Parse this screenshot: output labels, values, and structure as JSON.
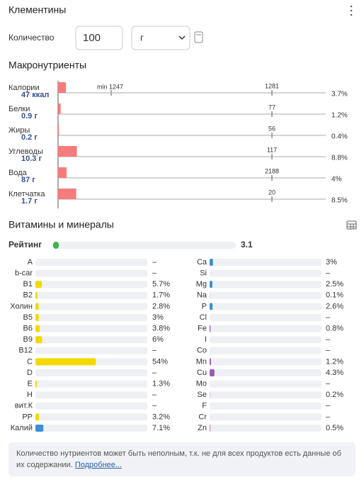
{
  "header": {
    "title": "Клементины"
  },
  "quantity": {
    "label": "Количество",
    "value": 100,
    "unit": "г"
  },
  "macros": {
    "title": "Макронутриенты",
    "min_label": "min 1247",
    "color": "#f47c7c",
    "rows": [
      {
        "name": "Калории",
        "amount": "47 ккал",
        "norm": 1281,
        "percent": 3.7,
        "percent_label": "3.7%"
      },
      {
        "name": "Белки",
        "amount": "0.9 г",
        "norm": 77,
        "percent": 1.2,
        "percent_label": "1.2%"
      },
      {
        "name": "Жиры",
        "amount": "0.2 г",
        "norm": 56,
        "percent": 0.4,
        "percent_label": "0.4%"
      },
      {
        "name": "Углеводы",
        "amount": "10.3 г",
        "norm": 117,
        "percent": 8.8,
        "percent_label": "8.8%"
      },
      {
        "name": "Вода",
        "amount": "87 г",
        "norm": 2188,
        "percent": 4,
        "percent_label": "4%"
      },
      {
        "name": "Клетчатка",
        "amount": "1.7 г",
        "norm": 20,
        "percent": 8.5,
        "percent_label": "8.5%"
      }
    ]
  },
  "vitamins": {
    "title": "Витамины и минералы",
    "rating": {
      "label": "Рейтинг",
      "value": 3.1,
      "color": "#3cb54a"
    },
    "columns": [
      [
        {
          "name": "A",
          "value": null,
          "value_label": "–"
        },
        {
          "name": "b-car",
          "value": null,
          "value_label": "–"
        },
        {
          "name": "B1",
          "value": 5.7,
          "value_label": "5.7%",
          "color": "#f2d900"
        },
        {
          "name": "B2",
          "value": 1.7,
          "value_label": "1.7%",
          "color": "#f2d900"
        },
        {
          "name": "Холин",
          "value": 2.8,
          "value_label": "2.8%",
          "color": "#f2d900"
        },
        {
          "name": "B5",
          "value": 3,
          "value_label": "3%",
          "color": "#f2d900"
        },
        {
          "name": "B6",
          "value": 3.8,
          "value_label": "3.8%",
          "color": "#f2d900"
        },
        {
          "name": "B9",
          "value": 6,
          "value_label": "6%",
          "color": "#f2d900"
        },
        {
          "name": "B12",
          "value": null,
          "value_label": "–"
        },
        {
          "name": "C",
          "value": 54,
          "value_label": "54%",
          "color": "#f2d900"
        },
        {
          "name": "D",
          "value": null,
          "value_label": "–"
        },
        {
          "name": "E",
          "value": 1.3,
          "value_label": "1.3%",
          "color": "#f2d900"
        },
        {
          "name": "H",
          "value": null,
          "value_label": "–"
        },
        {
          "name": "вит.К",
          "value": null,
          "value_label": "–"
        },
        {
          "name": "PP",
          "value": 3.2,
          "value_label": "3.2%",
          "color": "#f2d900"
        },
        {
          "name": "Калий",
          "value": 7.1,
          "value_label": "7.1%",
          "color": "#3a8fd6"
        }
      ],
      [
        {
          "name": "Ca",
          "value": 3,
          "value_label": "3%",
          "color": "#3a8fd6"
        },
        {
          "name": "Si",
          "value": null,
          "value_label": "–"
        },
        {
          "name": "Mg",
          "value": 2.5,
          "value_label": "2.5%",
          "color": "#3a8fd6"
        },
        {
          "name": "Na",
          "value": 0.1,
          "value_label": "0.1%",
          "color": "#3a8fd6"
        },
        {
          "name": "P",
          "value": 2.6,
          "value_label": "2.6%",
          "color": "#3a8fd6"
        },
        {
          "name": "Cl",
          "value": null,
          "value_label": "–"
        },
        {
          "name": "Fe",
          "value": 0.8,
          "value_label": "0.8%",
          "color": "#9b59b6"
        },
        {
          "name": "I",
          "value": null,
          "value_label": "–"
        },
        {
          "name": "Co",
          "value": null,
          "value_label": "–"
        },
        {
          "name": "Mn",
          "value": 1.2,
          "value_label": "1.2%",
          "color": "#9b59b6"
        },
        {
          "name": "Cu",
          "value": 4.3,
          "value_label": "4.3%",
          "color": "#9b59b6"
        },
        {
          "name": "Mo",
          "value": null,
          "value_label": "–"
        },
        {
          "name": "Se",
          "value": 0.2,
          "value_label": "0.2%",
          "color": "#9b59b6"
        },
        {
          "name": "F",
          "value": null,
          "value_label": "–"
        },
        {
          "name": "Cr",
          "value": null,
          "value_label": "–"
        },
        {
          "name": "Zn",
          "value": 0.5,
          "value_label": "0.5%",
          "color": "#9b59b6"
        }
      ]
    ]
  },
  "footer": {
    "text": "Количество нутриентов может быть неполным, т.к. не для всех продуктов есть данные об их содержании.",
    "link": "Подробнее..."
  }
}
